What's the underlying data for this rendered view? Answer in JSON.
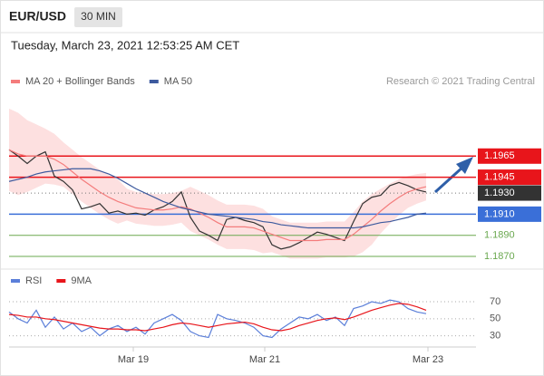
{
  "header": {
    "symbol": "EUR/USD",
    "timeframe": "30 MIN",
    "timestamp": "Tuesday, March 23, 2021 12:53:25 AM CET"
  },
  "chart_data": [
    {
      "type": "line",
      "credit": "Research © 2021 Trading Central",
      "xlim": [
        0,
        51.5
      ],
      "ylim": [
        1.1864,
        1.2027
      ],
      "series": [
        {
          "color": "#333333",
          "values": [
            1.1971,
            1.1965,
            1.1958,
            1.1965,
            1.1969,
            1.1946,
            1.1941,
            1.1933,
            1.1915,
            1.1917,
            1.192,
            1.1911,
            1.1913,
            1.191,
            1.1911,
            1.1909,
            1.1914,
            1.1917,
            1.1922,
            1.1931,
            1.1907,
            1.1894,
            1.189,
            1.1885,
            1.1905,
            1.1907,
            1.1904,
            1.1902,
            1.1898,
            1.1881,
            1.1877,
            1.1879,
            1.1883,
            1.1888,
            1.1893,
            1.1891,
            1.1888,
            1.1885,
            1.1903,
            1.192,
            1.1926,
            1.1928,
            1.1937,
            1.194,
            1.1937,
            1.1933,
            1.1931
          ]
        },
        {
          "name": "MA 20 + Bollinger Bands",
          "color": "#f47c7c",
          "band_color": "#fde0e0",
          "values": [
            1.1971,
            1.1967,
            1.1965,
            1.1965,
            1.1965,
            1.1962,
            1.1957,
            1.195,
            1.1943,
            1.1937,
            1.1931,
            1.1926,
            1.1922,
            1.1919,
            1.1916,
            1.1915,
            1.1914,
            1.1914,
            1.1915,
            1.1917,
            1.1915,
            1.1911,
            1.1907,
            1.1902,
            1.1898,
            1.1898,
            1.1898,
            1.1897,
            1.1894,
            1.1891,
            1.1888,
            1.1885,
            1.1885,
            1.1885,
            1.1885,
            1.1886,
            1.1886,
            1.1886,
            1.1891,
            1.1898,
            1.1905,
            1.1913,
            1.192,
            1.1926,
            1.1931,
            1.1934,
            1.1936
          ],
          "upper": [
            1.201,
            1.2006,
            1.1999,
            1.1995,
            1.1991,
            1.1986,
            1.1978,
            1.1971,
            1.1964,
            1.1958,
            1.1952,
            1.1947,
            1.1943,
            1.1934,
            1.1931,
            1.193,
            1.1929,
            1.1929,
            1.193,
            1.1932,
            1.1936,
            1.1932,
            1.1928,
            1.1923,
            1.1919,
            1.1919,
            1.1919,
            1.1918,
            1.1915,
            1.1908,
            1.1905,
            1.1902,
            1.1902,
            1.1902,
            1.1902,
            1.1903,
            1.1903,
            1.1903,
            1.1912,
            1.1922,
            1.1929,
            1.1934,
            1.1939,
            1.1943,
            1.1946,
            1.1948,
            1.1949
          ],
          "lower": [
            1.1932,
            1.1928,
            1.1931,
            1.1935,
            1.1939,
            1.1938,
            1.1936,
            1.1929,
            1.1922,
            1.1916,
            1.191,
            1.1905,
            1.1901,
            1.1904,
            1.1901,
            1.19,
            1.1899,
            1.1899,
            1.19,
            1.1902,
            1.1894,
            1.189,
            1.1886,
            1.1881,
            1.1877,
            1.1877,
            1.1877,
            1.1876,
            1.1873,
            1.1874,
            1.1871,
            1.1868,
            1.1868,
            1.1868,
            1.1868,
            1.1869,
            1.1869,
            1.1869,
            1.187,
            1.1874,
            1.1881,
            1.1892,
            1.1901,
            1.1909,
            1.1916,
            1.192,
            1.1923
          ]
        },
        {
          "name": "MA 50",
          "color": "#3d5a9e",
          "values": [
            1.1941,
            1.1943,
            1.1945,
            1.1948,
            1.195,
            1.1951,
            1.1952,
            1.1953,
            1.1953,
            1.1953,
            1.1951,
            1.1948,
            1.1944,
            1.1939,
            1.1934,
            1.193,
            1.1926,
            1.1922,
            1.1919,
            1.1916,
            1.1914,
            1.1912,
            1.191,
            1.1909,
            1.1908,
            1.1907,
            1.1906,
            1.1905,
            1.1903,
            1.1902,
            1.19,
            1.1899,
            1.1898,
            1.1897,
            1.1897,
            1.1897,
            1.1897,
            1.1897,
            1.1897,
            1.1898,
            1.19,
            1.1902,
            1.1903,
            1.1905,
            1.1907,
            1.191,
            1.1911
          ]
        }
      ],
      "levels": [
        {
          "value": 1.1965,
          "color": "#e8151b",
          "boxed": true,
          "line": "solid"
        },
        {
          "value": 1.1945,
          "color": "#e8151b",
          "boxed": true,
          "line": "solid"
        },
        {
          "value": 1.193,
          "label": "1.1930",
          "color": "#333333",
          "boxed": true,
          "line": "dotted"
        },
        {
          "value": 1.191,
          "label": "1.1910",
          "color": "#3a6fd8",
          "boxed": true,
          "line": "solid"
        },
        {
          "value": 1.189,
          "label": "1.1890",
          "color": "#6aa84f",
          "boxed": false,
          "line": "solid"
        },
        {
          "value": 1.187,
          "label": "1.1870",
          "color": "#6aa84f",
          "boxed": false,
          "line": "solid"
        }
      ]
    },
    {
      "type": "line",
      "xlim": [
        0,
        51.5
      ],
      "ylim": [
        20,
        86
      ],
      "yticks": [
        30,
        50,
        70
      ],
      "grid": true,
      "xticks": [
        {
          "value": 13.7,
          "label": "Mar 19"
        },
        {
          "value": 28.2,
          "label": "Mar 21"
        },
        {
          "value": 46.2,
          "label": "Mar 23"
        }
      ],
      "series": [
        {
          "name": "RSI",
          "color": "#5b7fd9",
          "values": [
            58,
            50,
            45,
            60,
            40,
            52,
            38,
            45,
            35,
            40,
            30,
            38,
            42,
            35,
            40,
            32,
            45,
            50,
            55,
            48,
            35,
            30,
            28,
            55,
            50,
            48,
            45,
            40,
            30,
            28,
            38,
            45,
            52,
            50,
            55,
            48,
            52,
            42,
            62,
            65,
            70,
            68,
            72,
            70,
            62,
            58,
            56
          ]
        },
        {
          "name": "9MA",
          "color": "#e8151b",
          "values": [
            55,
            54,
            52,
            52,
            50,
            49,
            47,
            45,
            43,
            41,
            39,
            38,
            38,
            37,
            37,
            36,
            38,
            40,
            43,
            45,
            44,
            42,
            40,
            42,
            44,
            45,
            46,
            44,
            40,
            37,
            36,
            38,
            42,
            45,
            48,
            50,
            51,
            49,
            52,
            56,
            60,
            63,
            66,
            68,
            67,
            64,
            60
          ]
        }
      ]
    }
  ]
}
